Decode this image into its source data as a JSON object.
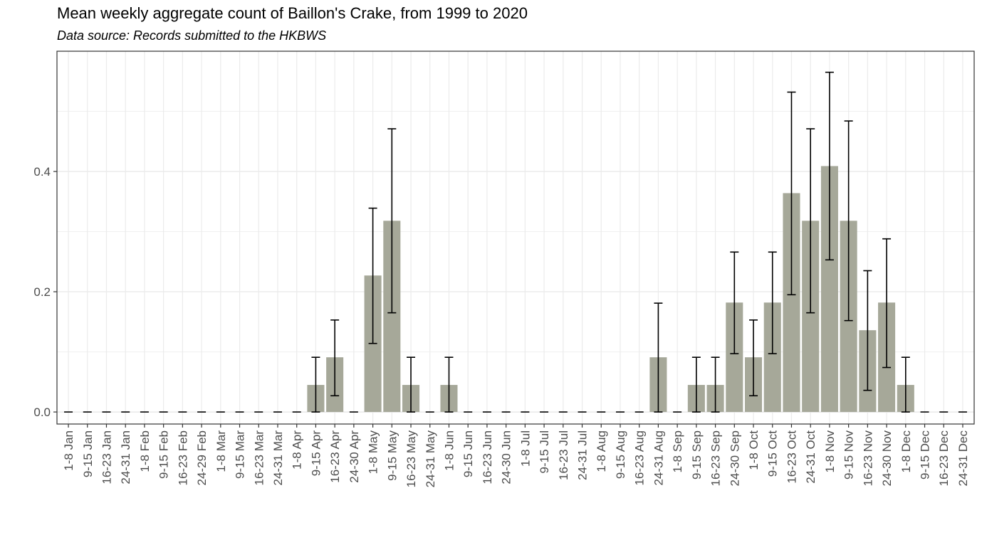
{
  "chart_data": {
    "type": "bar",
    "title": "Mean weekly aggregate count of Baillon's Crake, from 1999 to 2020",
    "subtitle": "Data source: Records submitted to the HKBWS",
    "xlabel": "",
    "ylabel": "",
    "ylim": [
      -0.02,
      0.6
    ],
    "yticks": [
      "0.0",
      "0.2",
      "0.4"
    ],
    "grid": true,
    "bar_color": "#a6a899",
    "categories": [
      "1-8 Jan",
      "9-15 Jan",
      "16-23 Jan",
      "24-31 Jan",
      "1-8 Feb",
      "9-15 Feb",
      "16-23 Feb",
      "24-29 Feb",
      "1-8 Mar",
      "9-15 Mar",
      "16-23 Mar",
      "24-31 Mar",
      "1-8 Apr",
      "9-15 Apr",
      "16-23 Apr",
      "24-30 Apr",
      "1-8 May",
      "9-15 May",
      "16-23 May",
      "24-31 May",
      "1-8 Jun",
      "9-15 Jun",
      "16-23 Jun",
      "24-30 Jun",
      "1-8 Jul",
      "9-15 Jul",
      "16-23 Jul",
      "24-31 Jul",
      "1-8 Aug",
      "9-15 Aug",
      "16-23 Aug",
      "24-31 Aug",
      "1-8 Sep",
      "9-15 Sep",
      "16-23 Sep",
      "24-30 Sep",
      "1-8 Oct",
      "9-15 Oct",
      "16-23 Oct",
      "24-31 Oct",
      "1-8 Nov",
      "9-15 Nov",
      "16-23 Nov",
      "24-30 Nov",
      "1-8 Dec",
      "9-15 Dec",
      "16-23 Dec",
      "24-31 Dec"
    ],
    "values": [
      0,
      0,
      0,
      0,
      0,
      0,
      0,
      0,
      0,
      0,
      0,
      0,
      0,
      0.045,
      0.091,
      0,
      0.227,
      0.318,
      0.045,
      0,
      0.045,
      0,
      0,
      0,
      0,
      0,
      0,
      0,
      0,
      0,
      0,
      0.091,
      0,
      0.045,
      0.045,
      0.182,
      0.091,
      0.182,
      0.364,
      0.318,
      0.409,
      0.318,
      0.136,
      0.182,
      0.045,
      0,
      0,
      0
    ],
    "error_low": [
      0,
      0,
      0,
      0,
      0,
      0,
      0,
      0,
      0,
      0,
      0,
      0,
      0,
      0,
      0.027,
      0,
      0.114,
      0.165,
      0,
      0,
      0,
      0,
      0,
      0,
      0,
      0,
      0,
      0,
      0,
      0,
      0,
      0,
      0,
      0,
      0,
      0.097,
      0.027,
      0.097,
      0.195,
      0.165,
      0.253,
      0.152,
      0.036,
      0.074,
      0,
      0,
      0,
      0
    ],
    "error_high": [
      0,
      0,
      0,
      0,
      0,
      0,
      0,
      0,
      0,
      0,
      0,
      0,
      0,
      0.091,
      0.153,
      0,
      0.339,
      0.471,
      0.091,
      0,
      0.091,
      0,
      0,
      0,
      0,
      0,
      0,
      0,
      0,
      0,
      0,
      0.181,
      0,
      0.091,
      0.091,
      0.266,
      0.153,
      0.266,
      0.532,
      0.471,
      0.565,
      0.484,
      0.235,
      0.288,
      0.091,
      0,
      0,
      0
    ]
  }
}
